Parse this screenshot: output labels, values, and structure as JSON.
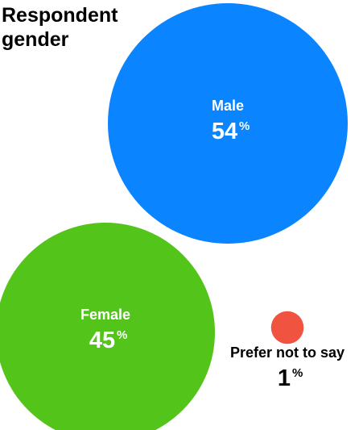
{
  "chart_data": {
    "type": "bubble",
    "title": "Respondent gender",
    "unit": "%",
    "series": [
      {
        "name": "Male",
        "value": 54,
        "color": "#0A84FF"
      },
      {
        "name": "Female",
        "value": 45,
        "color": "#52C41A"
      },
      {
        "name": "Prefer not to say",
        "value": 1,
        "color": "#F0533F"
      }
    ]
  }
}
